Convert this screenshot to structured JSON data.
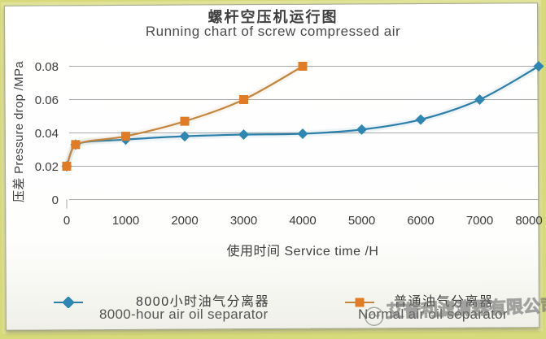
{
  "page": {
    "frame_color": "#d7da7a",
    "card_color": "#ffffff"
  },
  "header": {
    "title_zh": "螺杆空压机运行图",
    "title_en": "Running chart of screw compressed air"
  },
  "chart_data": {
    "type": "line",
    "title": "螺杆空压机运行图 Running chart of screw compressed air",
    "xlabel": "使用时间 Service time /H",
    "ylabel": "压差 Pressure drop /MPa",
    "xlim": [
      0,
      8000
    ],
    "ylim": [
      0,
      0.08
    ],
    "xticks": [
      0,
      1000,
      2000,
      3000,
      4000,
      5000,
      6000,
      7000,
      8000
    ],
    "xtick_labels": [
      "0",
      "1000",
      "2000",
      "3000",
      "4000",
      "5000",
      "6000",
      "7000",
      "8000"
    ],
    "yticks": [
      0,
      0.02,
      0.04,
      0.06,
      0.08
    ],
    "ytick_labels": [
      "0",
      "0.02",
      "0.04",
      "0.06",
      "0.08"
    ],
    "grid": "horizontal",
    "gridline_color": "#a8a8a8",
    "legend_position": "bottom",
    "series": [
      {
        "name_zh": "8000小时油气分离器",
        "name_en": "8000-hour air oil separator",
        "marker": "diamond",
        "color": "#2e86b2",
        "line_color": "#2b7fa9",
        "points": [
          [
            0,
            0.02
          ],
          [
            150,
            0.033
          ],
          [
            1000,
            0.036
          ],
          [
            2000,
            0.038
          ],
          [
            3000,
            0.039
          ],
          [
            4000,
            0.0395
          ],
          [
            5000,
            0.042
          ],
          [
            6000,
            0.048
          ],
          [
            7000,
            0.06
          ],
          [
            8000,
            0.08
          ]
        ]
      },
      {
        "name_zh": "普通油气分离器",
        "name_en": "Normal air oil separator",
        "marker": "square",
        "color": "#e07c26",
        "line_color": "#c4863e",
        "points": [
          [
            0,
            0.02
          ],
          [
            150,
            0.033
          ],
          [
            1000,
            0.038
          ],
          [
            2000,
            0.047
          ],
          [
            3000,
            0.06
          ],
          [
            4000,
            0.08
          ]
        ]
      }
    ]
  },
  "watermark": {
    "text": "艾普利滤清器有限公司",
    "logo": "circular-emblem"
  }
}
